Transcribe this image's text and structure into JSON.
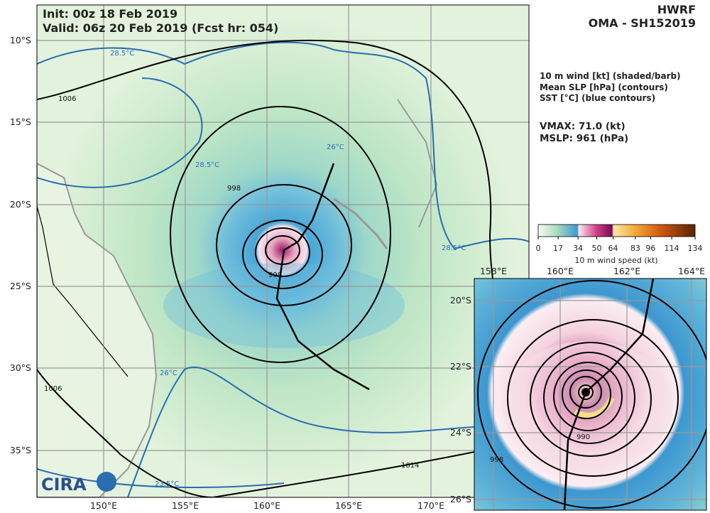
{
  "header": {
    "init": "Init:  00z 18 Feb 2019",
    "valid": "Valid: 06z 20 Feb 2019 (Fcst hr: 054)",
    "model": "HWRF",
    "storm": "OMA - SH152019",
    "logo": "CIRA"
  },
  "legend": [
    "10 m wind [kt] (shaded/barb)",
    "Mean SLP [hPa] (contours)",
    "SST [°C] (blue contours)"
  ],
  "stats": {
    "vmax": "VMAX:  71.0 (kt)",
    "mslp": "MSLP:  961 (hPa)"
  },
  "colorbar": {
    "ticks": [
      0,
      17,
      34,
      50,
      64,
      83,
      96,
      114,
      134
    ],
    "label": "10 m wind speed (kt)"
  },
  "main_map": {
    "lat_labels": [
      "10°S",
      "15°S",
      "20°S",
      "25°S",
      "30°S",
      "35°S"
    ],
    "lon_labels": [
      "150°E",
      "155°E",
      "160°E",
      "165°E",
      "170°E"
    ]
  },
  "inset_map": {
    "lon_labels": [
      "158°E",
      "160°E",
      "162°E",
      "164°E"
    ],
    "lat_labels": [
      "20°S",
      "22°S",
      "24°S",
      "26°S"
    ]
  },
  "contour_labels": [
    "1006",
    "998",
    "990",
    "1006",
    "1014"
  ],
  "sst_labels": [
    "28.5°C",
    "28.5°C",
    "28.5°C",
    "26°C",
    "26°C",
    "23.5°C"
  ]
}
